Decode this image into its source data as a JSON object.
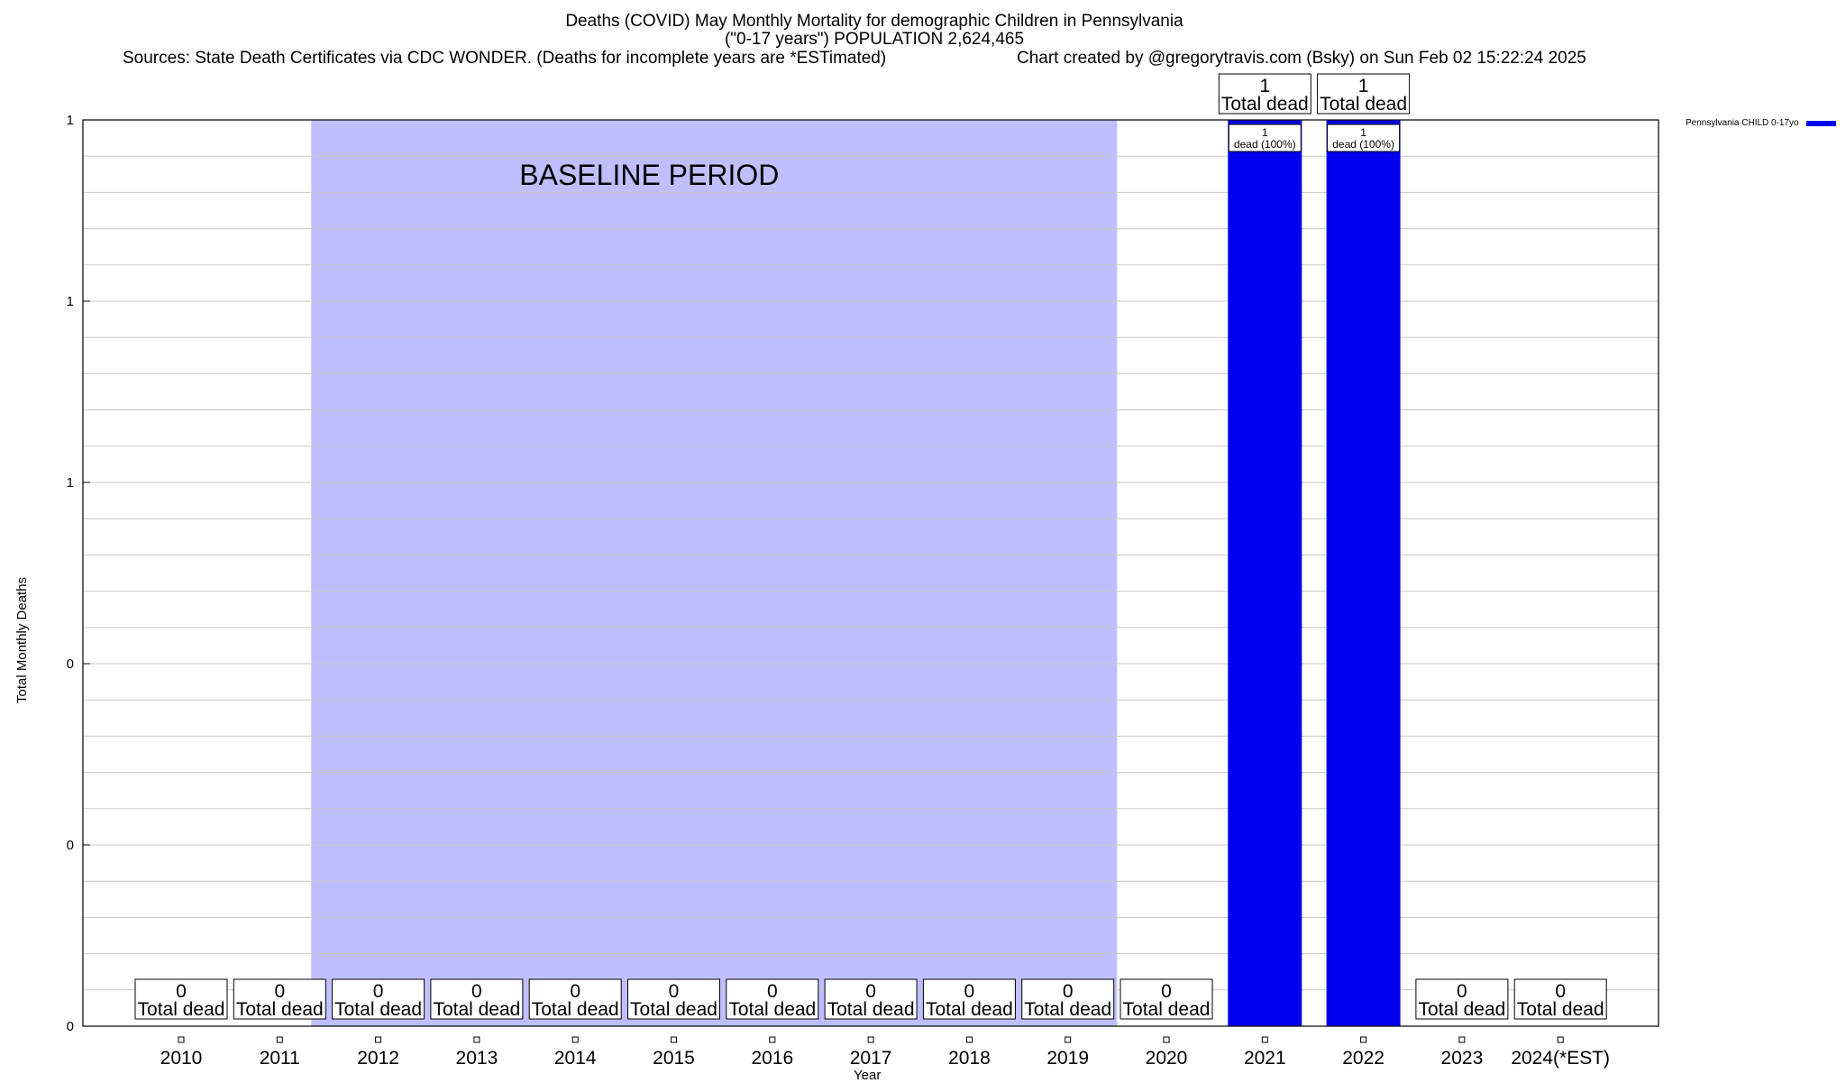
{
  "chart_data": {
    "type": "bar",
    "title": "Deaths (COVID) May Monthly Mortality for demographic Children in Pennsylvania",
    "subtitle": "(\"0-17 years\") POPULATION 2,624,465",
    "sources": "Sources: State Death Certificates via CDC WONDER. (Deaths for incomplete years are *ESTimated)",
    "credit": "Chart created by @gregorytravis.com (Bsky) on Sun Feb 02 15:22:24 2025",
    "xlabel": "Year",
    "ylabel": "Total Monthly Deaths",
    "categories": [
      "2010",
      "2011",
      "2012",
      "2013",
      "2014",
      "2015",
      "2016",
      "2017",
      "2018",
      "2019",
      "2020",
      "2021",
      "2022",
      "2023",
      "2024(*EST)"
    ],
    "series": [
      {
        "name": "Pennsylvania CHILD 0-17yo",
        "color": "#0000ee",
        "values": [
          0,
          0,
          0,
          0,
          0,
          0,
          0,
          0,
          0,
          0,
          0,
          1,
          1,
          0,
          0
        ]
      }
    ],
    "ylim": [
      0,
      1
    ],
    "ytick_values": [
      0,
      0.2,
      0.4,
      0.6,
      0.8,
      1.0
    ],
    "ytick_labels": [
      "0",
      "0",
      "0",
      "1",
      "1",
      "1"
    ],
    "total_label_suffix": "Total dead",
    "bar_labels": [
      "",
      "",
      "",
      "",
      "",
      "",
      "",
      "",
      "",
      "",
      "",
      "1\ndead (100%)",
      "1\ndead (100%)",
      "",
      ""
    ],
    "baseline": {
      "label": "BASELINE PERIOD",
      "from": "2012",
      "to": "2019",
      "color": "#bfbfff"
    },
    "grid": true,
    "legend_position": "top-right"
  }
}
